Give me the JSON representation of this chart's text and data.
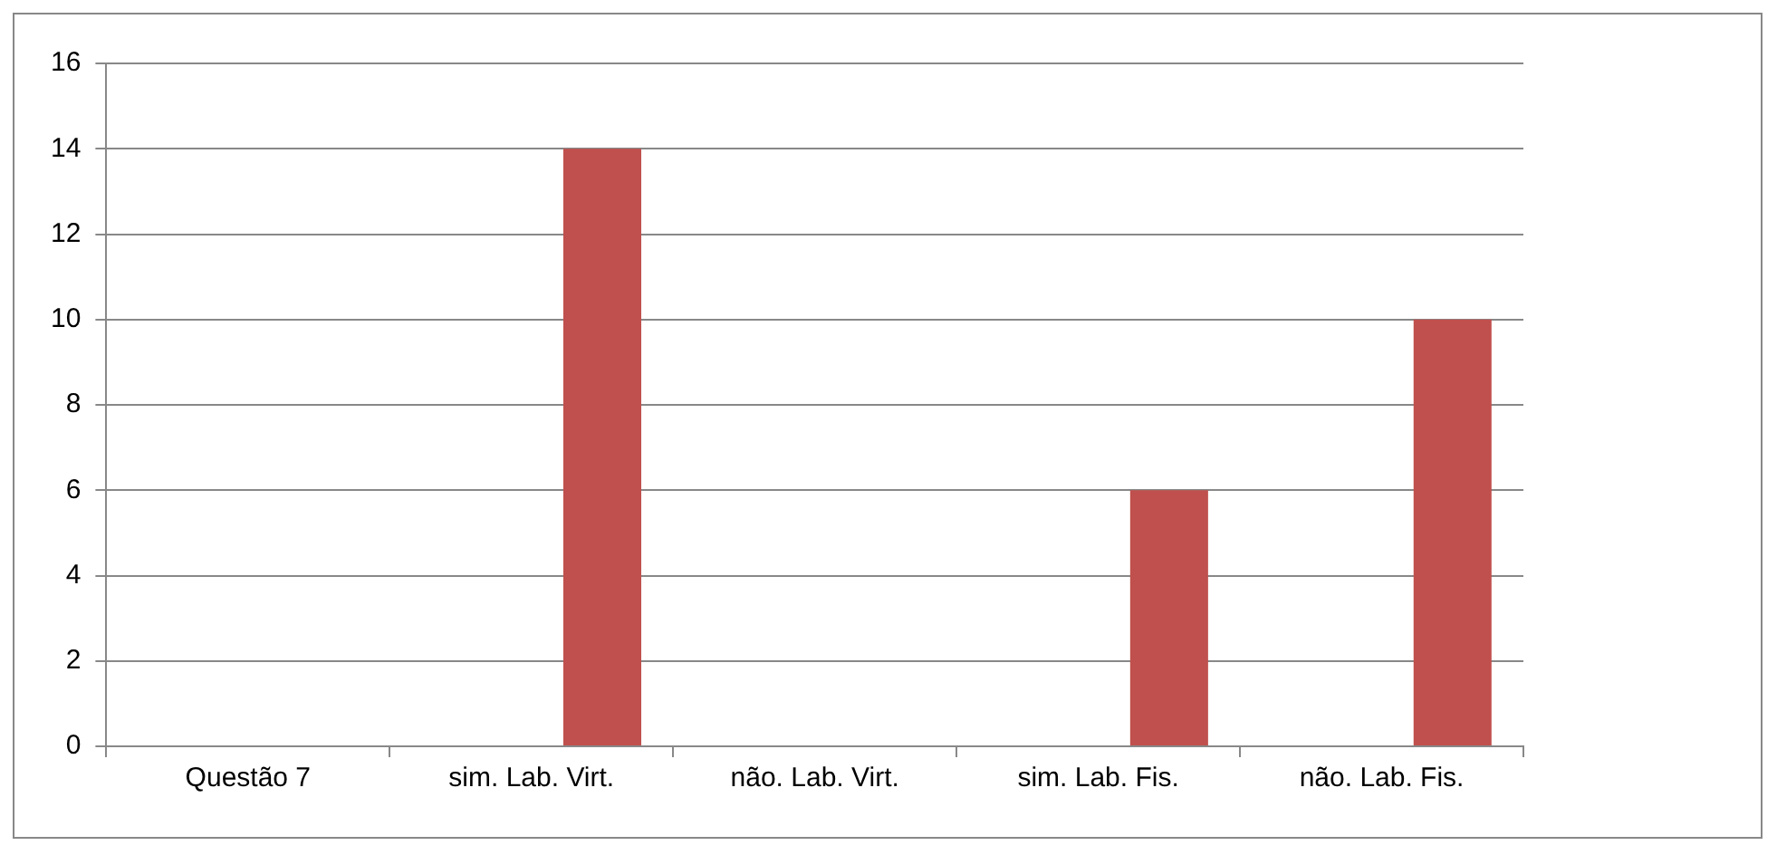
{
  "chart_data": {
    "type": "bar",
    "categories": [
      "Questão 7",
      "sim. Lab. Virt.",
      "não. Lab. Virt.",
      "sim. Lab. Fis.",
      "não. Lab. Fis."
    ],
    "series": [
      {
        "color": "#4f81bd",
        "values": [
          null,
          null,
          null,
          null,
          null
        ]
      },
      {
        "color": "#c0504d",
        "values": [
          null,
          14,
          null,
          6,
          10
        ]
      }
    ],
    "ylim": [
      0,
      16
    ],
    "yticks": [
      0,
      2,
      4,
      6,
      8,
      10,
      12,
      14,
      16
    ],
    "grid": "y",
    "legend": false
  }
}
